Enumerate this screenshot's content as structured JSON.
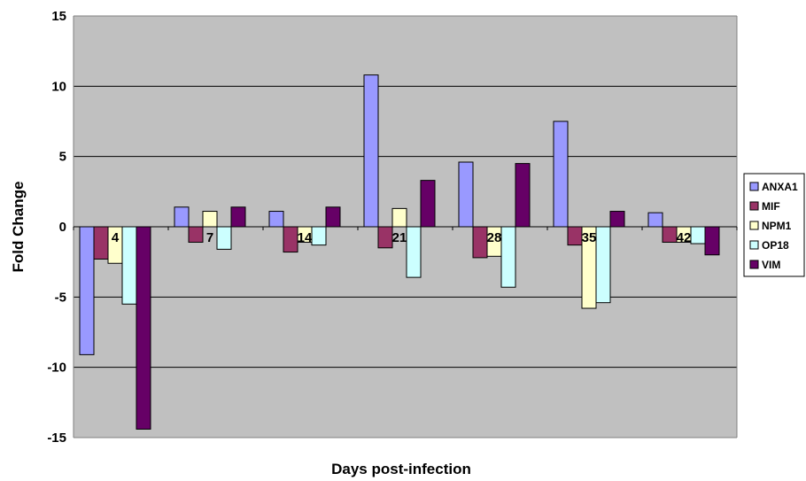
{
  "chart_data": {
    "type": "bar",
    "title": "",
    "xlabel": "Days post-infection",
    "ylabel": "Fold Change",
    "ylim": [
      -15,
      15
    ],
    "yticks": [
      -15,
      -10,
      -5,
      0,
      5,
      10,
      15
    ],
    "grid": true,
    "legend_position": "right",
    "plot_background": "#c0c0c0",
    "categories": [
      "4",
      "7",
      "14",
      "21",
      "28",
      "35",
      "42"
    ],
    "series": [
      {
        "name": "ANXA1",
        "color": "#9999ff",
        "values": [
          -9.1,
          1.4,
          1.1,
          10.8,
          4.6,
          7.5,
          1.0
        ]
      },
      {
        "name": "MIF",
        "color": "#993366",
        "values": [
          -2.3,
          -1.1,
          -1.8,
          -1.5,
          -2.2,
          -1.3,
          -1.1
        ]
      },
      {
        "name": "NPM1",
        "color": "#ffffcc",
        "values": [
          -2.6,
          1.1,
          -1.1,
          1.3,
          -2.1,
          -5.8,
          -1.1
        ]
      },
      {
        "name": "OP18",
        "color": "#ccffff",
        "values": [
          -5.5,
          -1.6,
          -1.3,
          -3.6,
          -4.3,
          -5.4,
          -1.2
        ]
      },
      {
        "name": "VIM",
        "color": "#660066",
        "values": [
          -14.4,
          1.4,
          1.4,
          3.3,
          4.5,
          1.1,
          -2.0
        ]
      }
    ]
  }
}
